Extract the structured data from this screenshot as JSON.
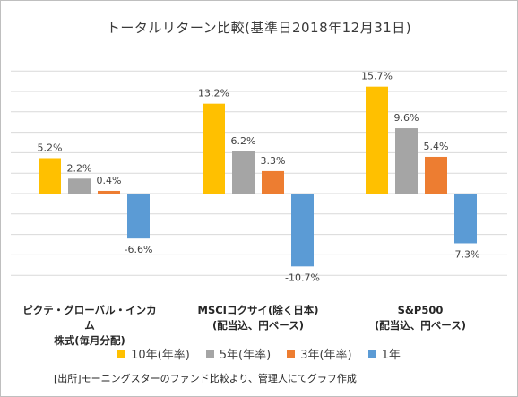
{
  "chart_data": {
    "type": "bar",
    "title": "トータルリターン比較(基準日2018年12月31日)",
    "categories": [
      [
        "ピクテ・グローバル・インカム",
        "株式(毎月分配)"
      ],
      [
        "MSCIコクサイ(除く日本)",
        "(配当込、円ベース)"
      ],
      [
        "S&P500",
        "(配当込、円ベース)"
      ]
    ],
    "series": [
      {
        "name": "10年(年率)",
        "color": "#ffc000",
        "values": [
          5.2,
          13.2,
          15.7
        ]
      },
      {
        "name": "5年(年率)",
        "color": "#a5a5a5",
        "values": [
          2.2,
          6.2,
          9.6
        ]
      },
      {
        "name": "3年(年率)",
        "color": "#ed7d31",
        "values": [
          0.4,
          3.3,
          5.4
        ]
      },
      {
        "name": "1年",
        "color": "#5b9bd5",
        "values": [
          -6.6,
          -10.7,
          -7.3
        ]
      }
    ],
    "value_labels": [
      [
        "5.2%",
        "2.2%",
        "0.4%",
        "-6.6%"
      ],
      [
        "13.2%",
        "6.2%",
        "3.3%",
        "-10.7%"
      ],
      [
        "15.7%",
        "9.6%",
        "5.4%",
        "-7.3%"
      ]
    ],
    "ylim": [
      -12,
      18
    ],
    "grid": true,
    "legend_position": "bottom"
  },
  "source_note": "[出所]モーニングスターのファンド比較より、管理人にてグラフ作成"
}
